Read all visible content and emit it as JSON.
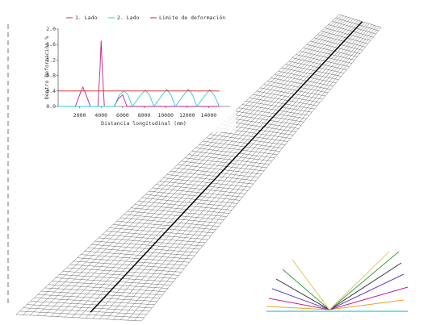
{
  "chart_data": {
    "type": "line",
    "y_label": "Dentro Deformación %",
    "x_label": "Distancia longitudinal (mm)",
    "xlim": [
      0,
      16000
    ],
    "ylim": [
      0,
      2.0
    ],
    "xticks": [
      2000,
      4000,
      6000,
      8000,
      10000,
      12000,
      14000
    ],
    "yticks": [
      {
        "value": 0,
        "label": "0.0"
      },
      0.4,
      0.8,
      1.2,
      1.6,
      {
        "value": 2,
        "label": "2.0"
      }
    ],
    "series": [
      {
        "name": "1. Lado",
        "color": "#c0208a",
        "x": [
          0,
          1600,
          2000,
          2300,
          2600,
          3000,
          3700,
          3900,
          4000,
          4100,
          4300,
          5200,
          5600,
          6000,
          6400,
          15000
        ],
        "values": [
          0,
          0,
          0.3,
          0.5,
          0.3,
          0,
          0,
          1.0,
          1.7,
          1.0,
          0,
          0,
          0.2,
          0.3,
          0,
          0
        ]
      },
      {
        "name": "2. Lado",
        "color": "#30c8d8",
        "x": [
          0,
          5200,
          5700,
          6100,
          6500,
          6900,
          7700,
          8100,
          8500,
          8900,
          9700,
          10100,
          10500,
          10900,
          11700,
          12100,
          12500,
          12900,
          13700,
          14100,
          14500,
          15000
        ],
        "values": [
          0,
          0,
          0.3,
          0.4,
          0.3,
          0,
          0.3,
          0.42,
          0.3,
          0,
          0.3,
          0.44,
          0.3,
          0,
          0.3,
          0.45,
          0.3,
          0,
          0.3,
          0.43,
          0.3,
          0
        ]
      },
      {
        "name": "Limite de deformación",
        "color": "#d82020",
        "x": [
          0,
          15000
        ],
        "values": [
          0.4,
          0.4
        ]
      }
    ]
  }
}
